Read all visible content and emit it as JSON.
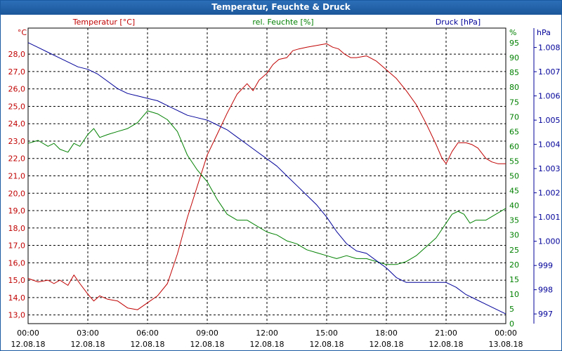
{
  "window": {
    "title": "Temperatur, Feuchte & Druck"
  },
  "colors": {
    "temperature": "#c00000",
    "humidity": "#008000",
    "pressure": "#000099",
    "grid": "#000000",
    "text": "#000000"
  },
  "chart_data": {
    "type": "line",
    "title": "Temperatur, Feuchte & Druck",
    "grid": true,
    "x_ticks": [
      {
        "time": "00:00",
        "date": "12.08.18"
      },
      {
        "time": "03:00",
        "date": "12.08.18"
      },
      {
        "time": "06:00",
        "date": "12.08.18"
      },
      {
        "time": "09:00",
        "date": "12.08.18"
      },
      {
        "time": "12:00",
        "date": "12.08.18"
      },
      {
        "time": "15:00",
        "date": "12.08.18"
      },
      {
        "time": "18:00",
        "date": "12.08.18"
      },
      {
        "time": "21:00",
        "date": "12.08.18"
      },
      {
        "time": "00:00",
        "date": "13.08.18"
      }
    ],
    "x_range_hours": [
      0,
      24
    ],
    "axes": {
      "temperature": {
        "label": "Temperatur [°C]",
        "unit": "°C",
        "range": [
          12.5,
          29.5
        ],
        "ticks": [
          "13,0",
          "14,0",
          "15,0",
          "16,0",
          "17,0",
          "18,0",
          "19,0",
          "20,0",
          "21,0",
          "22,0",
          "23,0",
          "24,0",
          "25,0",
          "26,0",
          "27,0",
          "28,0"
        ],
        "tick_values": [
          13,
          14,
          15,
          16,
          17,
          18,
          19,
          20,
          21,
          22,
          23,
          24,
          25,
          26,
          27,
          28
        ]
      },
      "humidity": {
        "label": "rel. Feuchte [%]",
        "unit": "%",
        "range": [
          0,
          100
        ],
        "ticks": [
          "0",
          "5",
          "10",
          "15",
          "20",
          "25",
          "30",
          "35",
          "40",
          "45",
          "50",
          "55",
          "60",
          "65",
          "70",
          "75",
          "80",
          "85",
          "90",
          "95"
        ],
        "tick_values": [
          0,
          5,
          10,
          15,
          20,
          25,
          30,
          35,
          40,
          45,
          50,
          55,
          60,
          65,
          70,
          75,
          80,
          85,
          90,
          95
        ]
      },
      "pressure": {
        "label": "Druck [hPa]",
        "unit": "hPa",
        "range": [
          996.6,
          1008.8
        ],
        "ticks": [
          "997",
          "998",
          "999",
          "1.000",
          "1.001",
          "1.002",
          "1.003",
          "1.004",
          "1.005",
          "1.006",
          "1.007",
          "1.008"
        ],
        "tick_values": [
          997,
          998,
          999,
          1000,
          1001,
          1002,
          1003,
          1004,
          1005,
          1006,
          1007,
          1008
        ]
      }
    },
    "series": [
      {
        "name": "Temperatur [°C]",
        "axis": "temperature",
        "x": [
          0,
          0.5,
          1,
          1.3,
          1.6,
          2,
          2.3,
          2.6,
          3,
          3.3,
          3.6,
          4,
          4.5,
          5,
          5.5,
          6,
          6.5,
          7,
          7.5,
          8,
          8.5,
          9,
          9.5,
          10,
          10.5,
          11,
          11.3,
          11.6,
          12,
          12.3,
          12.6,
          13,
          13.3,
          13.6,
          14,
          14.5,
          15,
          15.3,
          15.6,
          15.9,
          16.2,
          16.5,
          17,
          17.5,
          18,
          18.5,
          19,
          19.5,
          20,
          20.5,
          20.8,
          21,
          21.3,
          21.6,
          22,
          22.3,
          22.6,
          23,
          23.3,
          23.6,
          24
        ],
        "y": [
          15.1,
          14.9,
          15.0,
          14.8,
          15.0,
          14.7,
          15.3,
          14.8,
          14.2,
          13.8,
          14.1,
          13.9,
          13.8,
          13.4,
          13.3,
          13.7,
          14.1,
          14.8,
          16.5,
          18.6,
          20.4,
          22.2,
          23.4,
          24.6,
          25.7,
          26.3,
          25.9,
          26.5,
          26.9,
          27.4,
          27.7,
          27.8,
          28.2,
          28.3,
          28.4,
          28.5,
          28.6,
          28.4,
          28.3,
          28.0,
          27.8,
          27.8,
          27.9,
          27.6,
          27.1,
          26.6,
          25.9,
          25.1,
          24.0,
          22.8,
          22.0,
          21.7,
          22.4,
          22.9,
          22.9,
          22.8,
          22.6,
          22.0,
          21.8,
          21.7,
          21.7
        ],
        "color": "#c00000"
      },
      {
        "name": "rel. Feuchte [%]",
        "axis": "humidity",
        "x": [
          0,
          0.5,
          1,
          1.3,
          1.6,
          2,
          2.3,
          2.6,
          3,
          3.3,
          3.6,
          4,
          4.5,
          5,
          5.5,
          6,
          6.5,
          7,
          7.5,
          8,
          8.5,
          9,
          9.5,
          10,
          10.5,
          11,
          11.5,
          12,
          12.5,
          13,
          13.5,
          14,
          14.5,
          15,
          15.5,
          16,
          16.5,
          17,
          17.5,
          18,
          18.5,
          19,
          19.5,
          20,
          20.5,
          21,
          21.3,
          21.6,
          21.9,
          22.2,
          22.5,
          23,
          23.5,
          24
        ],
        "y": [
          61,
          62,
          60,
          61,
          59,
          58,
          61,
          60,
          64,
          66,
          63,
          64,
          65,
          66,
          68,
          72,
          71,
          69,
          65,
          57,
          52,
          48,
          42,
          37,
          35,
          35,
          33,
          31,
          30,
          28,
          27,
          25,
          24,
          23,
          22,
          23,
          22,
          22,
          21,
          20,
          20,
          21,
          23,
          26,
          29,
          34,
          37,
          38,
          37,
          34,
          35,
          35,
          37,
          39
        ],
        "color": "#008000"
      },
      {
        "name": "Druck [hPa]",
        "axis": "pressure",
        "x": [
          0,
          0.5,
          1,
          1.5,
          2,
          2.5,
          3,
          3.5,
          4,
          4.5,
          5,
          5.5,
          6,
          6.5,
          7,
          7.5,
          8,
          8.5,
          9,
          9.5,
          10,
          10.5,
          11,
          11.5,
          12,
          12.5,
          13,
          13.5,
          14,
          14.5,
          15,
          15.5,
          16,
          16.5,
          17,
          17.5,
          18,
          18.5,
          19,
          19.5,
          20,
          20.5,
          21,
          21.5,
          22,
          22.5,
          23,
          23.5,
          24
        ],
        "y": [
          1008.2,
          1008.0,
          1007.8,
          1007.6,
          1007.4,
          1007.2,
          1007.1,
          1006.9,
          1006.6,
          1006.3,
          1006.1,
          1006.0,
          1005.9,
          1005.8,
          1005.6,
          1005.4,
          1005.2,
          1005.1,
          1005.0,
          1004.8,
          1004.6,
          1004.3,
          1004.0,
          1003.7,
          1003.4,
          1003.1,
          1002.7,
          1002.3,
          1001.9,
          1001.5,
          1001.0,
          1000.4,
          999.9,
          999.6,
          999.5,
          999.2,
          998.9,
          998.5,
          998.3,
          998.3,
          998.3,
          998.3,
          998.3,
          998.1,
          997.8,
          997.6,
          997.4,
          997.2,
          997.0
        ],
        "color": "#000099"
      }
    ]
  }
}
